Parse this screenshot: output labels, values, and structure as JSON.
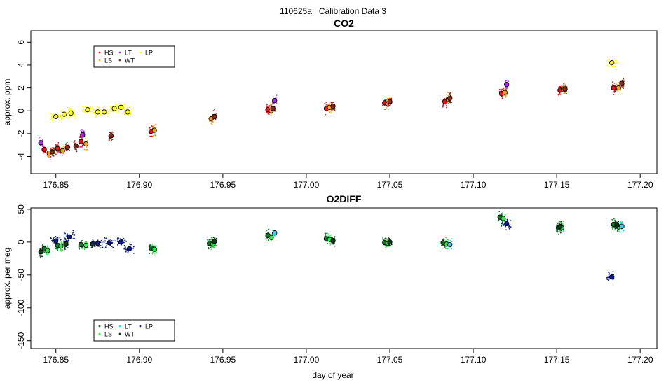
{
  "figure": {
    "title": "110625a   Calibration Data 3",
    "xlabel": "day of year"
  },
  "chart_data": [
    {
      "type": "scatter",
      "title": "CO2",
      "xlabel": "day of year",
      "ylabel": "approx. ppm",
      "xlim": [
        176.835,
        177.21
      ],
      "ylim": [
        -5.5,
        7.0
      ],
      "xticks": [
        "176.85",
        "176.90",
        "176.95",
        "177.00",
        "177.05",
        "177.10",
        "177.15",
        "177.20"
      ],
      "yticks": [
        "-4",
        "-2",
        "0",
        "2",
        "4",
        "6"
      ],
      "legend": {
        "placement": "top-left",
        "entries": [
          "HS",
          "LT",
          "LP",
          "LS",
          "WT"
        ]
      },
      "series_colors": {
        "HS": "#e8101a",
        "LS": "#f7a21b",
        "LT": "#9c2fe0",
        "WT": "#8b2a1a",
        "LP": "#ffff00"
      },
      "series": [
        {
          "name": "HS",
          "x": [
            176.843,
            176.851,
            176.865,
            176.907,
            176.977,
            177.012,
            177.047,
            177.083,
            177.117,
            177.152,
            177.184
          ],
          "y": [
            -3.4,
            -3.3,
            -2.7,
            -1.8,
            0.1,
            0.2,
            0.7,
            0.8,
            1.5,
            1.8,
            2.0
          ]
        },
        {
          "name": "LS",
          "x": [
            176.846,
            176.854,
            176.868,
            176.909,
            176.943,
            176.979,
            177.014,
            177.049,
            177.085,
            177.119,
            177.154,
            177.187
          ],
          "y": [
            -3.7,
            -3.5,
            -2.9,
            -1.7,
            -0.7,
            0.0,
            0.3,
            0.6,
            1.0,
            1.6,
            1.9,
            2.0
          ]
        },
        {
          "name": "LT",
          "x": [
            176.841,
            176.866,
            176.981,
            177.12
          ],
          "y": [
            -2.8,
            -2.1,
            0.9,
            2.3
          ]
        },
        {
          "name": "WT",
          "x": [
            176.848,
            176.857,
            176.862,
            176.883,
            176.945,
            176.98,
            177.016,
            177.05,
            177.086,
            177.155,
            177.189
          ],
          "y": [
            -3.6,
            -3.2,
            -3.1,
            -2.2,
            -0.5,
            0.2,
            0.4,
            0.8,
            1.1,
            1.9,
            2.4
          ]
        },
        {
          "name": "LP",
          "x": [
            176.85,
            176.855,
            176.859,
            176.869,
            176.875,
            176.879,
            176.885,
            176.889,
            176.893,
            177.183
          ],
          "y": [
            -0.5,
            -0.3,
            -0.2,
            0.1,
            -0.1,
            -0.1,
            0.2,
            0.3,
            -0.1,
            4.2
          ]
        }
      ]
    },
    {
      "type": "scatter",
      "title": "O2DIFF",
      "xlabel": "day of year",
      "ylabel": "approx. per meg",
      "xlim": [
        176.835,
        177.21
      ],
      "ylim": [
        -162,
        52
      ],
      "xticks": [
        "176.85",
        "176.90",
        "176.95",
        "177.00",
        "177.05",
        "177.10",
        "177.15",
        "177.20"
      ],
      "yticks": [
        "-150",
        "-100",
        "-50",
        "0",
        "50"
      ],
      "legend": {
        "placement": "bottom-left",
        "entries": [
          "HS",
          "LT",
          "LP",
          "LS",
          "WT"
        ]
      },
      "series_colors": {
        "HS": "#0b7a2a",
        "LS": "#33e84a",
        "LT": "#33d6e6",
        "WT": "#0f3d1a",
        "LP": "#0a1a8c"
      },
      "series": [
        {
          "name": "HS",
          "x": [
            176.843,
            176.851,
            176.865,
            176.907,
            176.942,
            176.977,
            177.012,
            177.047,
            177.082,
            177.116,
            177.151,
            177.184
          ],
          "y": [
            -10,
            -5,
            -4,
            -9,
            -2,
            10,
            5,
            -1,
            -1,
            38,
            22,
            27
          ]
        },
        {
          "name": "LS",
          "x": [
            176.845,
            176.853,
            176.868,
            176.909,
            176.944,
            176.979,
            177.014,
            177.049,
            177.084,
            177.118,
            177.153,
            177.187
          ],
          "y": [
            -13,
            -6,
            -5,
            -11,
            -3,
            7,
            4,
            -2,
            -3,
            36,
            22,
            23
          ]
        },
        {
          "name": "LT",
          "x": [
            176.981,
            177.086,
            177.189
          ],
          "y": [
            14,
            -4,
            24
          ]
        },
        {
          "name": "WT",
          "x": [
            176.841,
            176.856,
            176.872,
            176.945,
            177.016,
            177.05,
            177.152,
            177.186
          ],
          "y": [
            -15,
            -3,
            -3,
            1,
            2,
            0,
            24,
            26
          ]
        },
        {
          "name": "LP",
          "x": [
            176.85,
            176.858,
            176.875,
            176.882,
            176.889,
            176.894,
            177.12,
            177.183
          ],
          "y": [
            2,
            8,
            -2,
            -1,
            0,
            -10,
            28,
            -53
          ]
        }
      ]
    }
  ]
}
